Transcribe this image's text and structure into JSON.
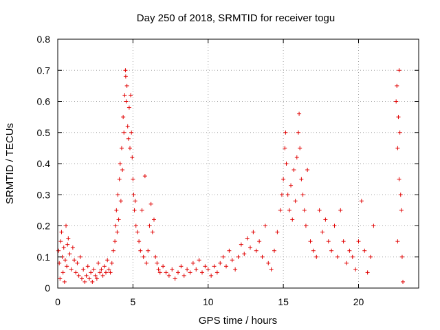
{
  "chart_data": {
    "type": "scatter",
    "title": "Day 250 of 2018, SRMTID for receiver togu",
    "xlabel": "GPS time / hours",
    "ylabel": "SRMTID / TECUs",
    "xlim": [
      0,
      24
    ],
    "ylim": [
      0,
      0.8
    ],
    "grid": true,
    "marker": "+",
    "color": "#e00000",
    "xticks": [
      0,
      5,
      10,
      15,
      20
    ],
    "yticks": [
      0,
      0.1,
      0.2,
      0.3,
      0.4,
      0.5,
      0.6,
      0.7,
      0.8
    ],
    "xtick_labels": [
      "0",
      "5",
      "10",
      "15",
      "20"
    ],
    "ytick_labels": [
      "0",
      "0.1",
      "0.2",
      "0.3",
      "0.4",
      "0.5",
      "0.6",
      "0.7",
      "0.8"
    ],
    "series": [
      {
        "name": "SRMTID",
        "points": [
          [
            0.05,
            0.12
          ],
          [
            0.1,
            0.08
          ],
          [
            0.15,
            0.03
          ],
          [
            0.2,
            0.15
          ],
          [
            0.25,
            0.18
          ],
          [
            0.3,
            0.1
          ],
          [
            0.35,
            0.05
          ],
          [
            0.4,
            0.13
          ],
          [
            0.45,
            0.02
          ],
          [
            0.5,
            0.09
          ],
          [
            0.55,
            0.2
          ],
          [
            0.6,
            0.07
          ],
          [
            0.65,
            0.14
          ],
          [
            0.7,
            0.16
          ],
          [
            0.8,
            0.11
          ],
          [
            0.9,
            0.06
          ],
          [
            1.0,
            0.13
          ],
          [
            1.1,
            0.09
          ],
          [
            1.2,
            0.05
          ],
          [
            1.3,
            0.08
          ],
          [
            1.4,
            0.04
          ],
          [
            1.5,
            0.1
          ],
          [
            1.6,
            0.03
          ],
          [
            1.7,
            0.06
          ],
          [
            1.8,
            0.02
          ],
          [
            1.9,
            0.04
          ],
          [
            2.0,
            0.07
          ],
          [
            2.1,
            0.03
          ],
          [
            2.2,
            0.05
          ],
          [
            2.3,
            0.02
          ],
          [
            2.4,
            0.06
          ],
          [
            2.5,
            0.04
          ],
          [
            2.6,
            0.03
          ],
          [
            2.7,
            0.08
          ],
          [
            2.8,
            0.05
          ],
          [
            2.9,
            0.06
          ],
          [
            3.0,
            0.04
          ],
          [
            3.1,
            0.07
          ],
          [
            3.2,
            0.05
          ],
          [
            3.3,
            0.09
          ],
          [
            3.4,
            0.06
          ],
          [
            3.5,
            0.05
          ],
          [
            3.6,
            0.08
          ],
          [
            3.7,
            0.12
          ],
          [
            3.8,
            0.15
          ],
          [
            3.85,
            0.2
          ],
          [
            3.9,
            0.25
          ],
          [
            3.95,
            0.18
          ],
          [
            4.0,
            0.3
          ],
          [
            4.05,
            0.22
          ],
          [
            4.1,
            0.35
          ],
          [
            4.15,
            0.4
          ],
          [
            4.2,
            0.28
          ],
          [
            4.25,
            0.45
          ],
          [
            4.3,
            0.38
          ],
          [
            4.35,
            0.55
          ],
          [
            4.4,
            0.5
          ],
          [
            4.45,
            0.62
          ],
          [
            4.5,
            0.7
          ],
          [
            4.52,
            0.68
          ],
          [
            4.55,
            0.6
          ],
          [
            4.6,
            0.65
          ],
          [
            4.65,
            0.52
          ],
          [
            4.7,
            0.48
          ],
          [
            4.75,
            0.58
          ],
          [
            4.8,
            0.45
          ],
          [
            4.85,
            0.62
          ],
          [
            4.9,
            0.5
          ],
          [
            4.95,
            0.42
          ],
          [
            5.0,
            0.35
          ],
          [
            5.05,
            0.3
          ],
          [
            5.1,
            0.25
          ],
          [
            5.15,
            0.28
          ],
          [
            5.2,
            0.2
          ],
          [
            5.3,
            0.18
          ],
          [
            5.4,
            0.15
          ],
          [
            5.5,
            0.12
          ],
          [
            5.6,
            0.25
          ],
          [
            5.7,
            0.1
          ],
          [
            5.8,
            0.36
          ],
          [
            5.9,
            0.08
          ],
          [
            6.0,
            0.12
          ],
          [
            6.1,
            0.2
          ],
          [
            6.2,
            0.27
          ],
          [
            6.3,
            0.18
          ],
          [
            6.4,
            0.22
          ],
          [
            6.5,
            0.1
          ],
          [
            6.6,
            0.08
          ],
          [
            6.7,
            0.06
          ],
          [
            6.8,
            0.05
          ],
          [
            7.0,
            0.07
          ],
          [
            7.2,
            0.05
          ],
          [
            7.4,
            0.04
          ],
          [
            7.6,
            0.06
          ],
          [
            7.8,
            0.03
          ],
          [
            8.0,
            0.05
          ],
          [
            8.2,
            0.07
          ],
          [
            8.4,
            0.04
          ],
          [
            8.6,
            0.06
          ],
          [
            8.8,
            0.05
          ],
          [
            9.0,
            0.08
          ],
          [
            9.2,
            0.06
          ],
          [
            9.4,
            0.09
          ],
          [
            9.6,
            0.05
          ],
          [
            9.8,
            0.07
          ],
          [
            10.0,
            0.06
          ],
          [
            10.2,
            0.04
          ],
          [
            10.4,
            0.07
          ],
          [
            10.6,
            0.05
          ],
          [
            10.8,
            0.08
          ],
          [
            11.0,
            0.1
          ],
          [
            11.2,
            0.07
          ],
          [
            11.4,
            0.12
          ],
          [
            11.6,
            0.09
          ],
          [
            11.8,
            0.06
          ],
          [
            12.0,
            0.1
          ],
          [
            12.2,
            0.14
          ],
          [
            12.4,
            0.11
          ],
          [
            12.6,
            0.16
          ],
          [
            12.8,
            0.13
          ],
          [
            13.0,
            0.18
          ],
          [
            13.2,
            0.12
          ],
          [
            13.4,
            0.15
          ],
          [
            13.6,
            0.1
          ],
          [
            13.8,
            0.2
          ],
          [
            14.0,
            0.08
          ],
          [
            14.2,
            0.06
          ],
          [
            14.4,
            0.12
          ],
          [
            14.6,
            0.18
          ],
          [
            14.8,
            0.25
          ],
          [
            14.9,
            0.3
          ],
          [
            15.0,
            0.35
          ],
          [
            15.1,
            0.45
          ],
          [
            15.15,
            0.5
          ],
          [
            15.2,
            0.4
          ],
          [
            15.3,
            0.3
          ],
          [
            15.4,
            0.25
          ],
          [
            15.5,
            0.33
          ],
          [
            15.6,
            0.22
          ],
          [
            15.7,
            0.38
          ],
          [
            15.8,
            0.28
          ],
          [
            15.9,
            0.42
          ],
          [
            16.0,
            0.5
          ],
          [
            16.05,
            0.56
          ],
          [
            16.1,
            0.45
          ],
          [
            16.2,
            0.35
          ],
          [
            16.3,
            0.3
          ],
          [
            16.4,
            0.25
          ],
          [
            16.5,
            0.2
          ],
          [
            16.6,
            0.38
          ],
          [
            16.8,
            0.15
          ],
          [
            17.0,
            0.12
          ],
          [
            17.2,
            0.1
          ],
          [
            17.4,
            0.25
          ],
          [
            17.6,
            0.18
          ],
          [
            17.8,
            0.22
          ],
          [
            18.0,
            0.15
          ],
          [
            18.2,
            0.12
          ],
          [
            18.4,
            0.2
          ],
          [
            18.6,
            0.1
          ],
          [
            18.8,
            0.25
          ],
          [
            19.0,
            0.15
          ],
          [
            19.2,
            0.08
          ],
          [
            19.4,
            0.12
          ],
          [
            19.6,
            0.1
          ],
          [
            19.8,
            0.06
          ],
          [
            20.0,
            0.15
          ],
          [
            20.2,
            0.28
          ],
          [
            20.4,
            0.12
          ],
          [
            20.6,
            0.05
          ],
          [
            20.8,
            0.1
          ],
          [
            21.0,
            0.2
          ],
          [
            22.5,
            0.6
          ],
          [
            22.55,
            0.65
          ],
          [
            22.6,
            0.45
          ],
          [
            22.65,
            0.55
          ],
          [
            22.7,
            0.7
          ],
          [
            22.75,
            0.5
          ],
          [
            22.8,
            0.3
          ],
          [
            22.85,
            0.25
          ],
          [
            22.9,
            0.1
          ],
          [
            22.95,
            0.02
          ],
          [
            22.6,
            0.15
          ],
          [
            22.7,
            0.35
          ]
        ]
      }
    ]
  }
}
